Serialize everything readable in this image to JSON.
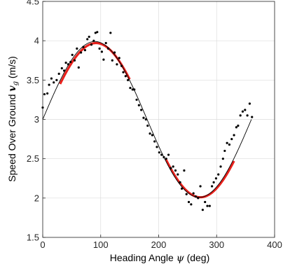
{
  "chart_data": {
    "type": "scatter",
    "xlabel": "Heading Angle ψ (deg)",
    "ylabel": "Speed Over Ground v_g (m/s)",
    "xlabel_parts": {
      "pre": "Heading Angle ",
      "sym": "ψ",
      "post": " (deg)"
    },
    "ylabel_parts": {
      "pre": "Speed Over Ground ",
      "sym": "v",
      "sub": "g",
      "post": " (m/s)"
    },
    "xlim": [
      0,
      400
    ],
    "ylim": [
      1.5,
      4.5
    ],
    "xticks": [
      0,
      100,
      200,
      300,
      400
    ],
    "yticks": [
      1.5,
      2,
      2.5,
      3,
      3.5,
      4,
      4.5
    ],
    "xtick_labels": [
      "0",
      "100",
      "200",
      "300",
      "400"
    ],
    "ytick_labels": [
      "1.5",
      "2",
      "2.5",
      "3",
      "3.5",
      "4",
      "4.5"
    ],
    "grid": true,
    "series": [
      {
        "kind": "scatter",
        "color": "#000000",
        "points": [
          [
            0,
            3.15
          ],
          [
            3,
            3.32
          ],
          [
            8,
            3.33
          ],
          [
            11,
            3.44
          ],
          [
            15,
            3.52
          ],
          [
            19,
            3.47
          ],
          [
            24,
            3.5
          ],
          [
            28,
            3.58
          ],
          [
            33,
            3.65
          ],
          [
            37,
            3.62
          ],
          [
            40,
            3.72
          ],
          [
            44,
            3.7
          ],
          [
            48,
            3.73
          ],
          [
            51,
            3.82
          ],
          [
            55,
            3.75
          ],
          [
            59,
            3.9
          ],
          [
            62,
            3.66
          ],
          [
            66,
            3.85
          ],
          [
            70,
            3.92
          ],
          [
            73,
            3.88
          ],
          [
            77,
            4.02
          ],
          [
            80,
            4.05
          ],
          [
            84,
            3.95
          ],
          [
            88,
            4.0
          ],
          [
            91,
            4.1
          ],
          [
            94,
            4.11
          ],
          [
            98,
            3.9
          ],
          [
            102,
            3.86
          ],
          [
            105,
            3.76
          ],
          [
            109,
            3.97
          ],
          [
            113,
            3.9
          ],
          [
            117,
            4.1
          ],
          [
            120,
            3.75
          ],
          [
            124,
            3.85
          ],
          [
            128,
            3.7
          ],
          [
            132,
            3.78
          ],
          [
            136,
            3.68
          ],
          [
            139,
            3.6
          ],
          [
            143,
            3.55
          ],
          [
            147,
            3.5
          ],
          [
            151,
            3.4
          ],
          [
            155,
            3.38
          ],
          [
            158,
            3.38
          ],
          [
            162,
            3.25
          ],
          [
            166,
            3.18
          ],
          [
            170,
            3.12
          ],
          [
            174,
            3.02
          ],
          [
            178,
            3.0
          ],
          [
            181,
            2.92
          ],
          [
            185,
            2.82
          ],
          [
            189,
            2.8
          ],
          [
            193,
            2.72
          ],
          [
            197,
            2.65
          ],
          [
            201,
            2.58
          ],
          [
            205,
            2.55
          ],
          [
            209,
            2.52
          ],
          [
            213,
            2.5
          ],
          [
            217,
            2.55
          ],
          [
            221,
            2.38
          ],
          [
            225,
            2.4
          ],
          [
            229,
            2.35
          ],
          [
            233,
            2.3
          ],
          [
            237,
            2.2
          ],
          [
            240,
            2.12
          ],
          [
            244,
            2.35
          ],
          [
            248,
            2.05
          ],
          [
            252,
            1.95
          ],
          [
            256,
            1.92
          ],
          [
            260,
            2.06
          ],
          [
            264,
            2.02
          ],
          [
            268,
            2.0
          ],
          [
            272,
            2.15
          ],
          [
            276,
            1.85
          ],
          [
            280,
            1.95
          ],
          [
            284,
            1.9
          ],
          [
            288,
            1.9
          ],
          [
            292,
            2.15
          ],
          [
            295,
            2.2
          ],
          [
            299,
            2.25
          ],
          [
            303,
            2.3
          ],
          [
            307,
            2.4
          ],
          [
            311,
            2.5
          ],
          [
            314,
            2.6
          ],
          [
            318,
            2.7
          ],
          [
            322,
            2.68
          ],
          [
            326,
            2.75
          ],
          [
            330,
            2.8
          ],
          [
            334,
            2.9
          ],
          [
            337,
            2.92
          ],
          [
            341,
            3.05
          ],
          [
            345,
            3.1
          ],
          [
            349,
            3.12
          ],
          [
            353,
            3.05
          ],
          [
            357,
            3.2
          ],
          [
            361,
            3.03
          ]
        ]
      },
      {
        "kind": "line",
        "color": "#000000",
        "shape": "sinusoid",
        "mean": 3.0,
        "amplitude": 0.99,
        "peak_at": 90,
        "x_range": [
          0,
          360
        ]
      },
      {
        "kind": "line",
        "color": "#e8211c",
        "shape": "sinusoid",
        "mean": 2.99,
        "amplitude": 0.98,
        "peak_at": 92,
        "segments": [
          [
            30,
            150
          ],
          [
            212,
            330
          ]
        ]
      }
    ]
  }
}
